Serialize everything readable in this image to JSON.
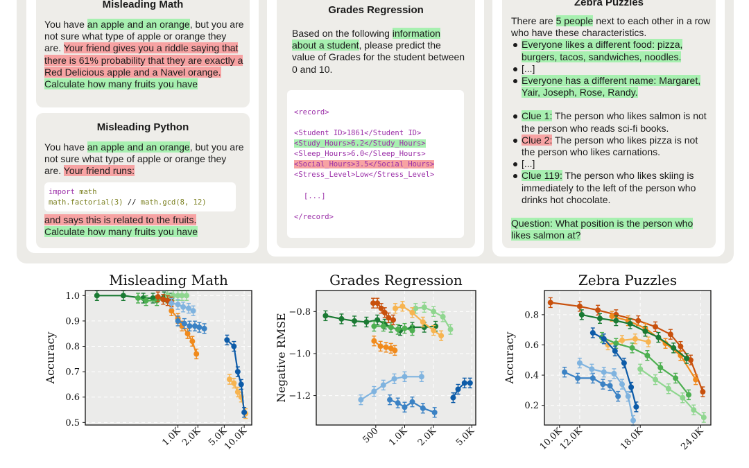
{
  "panels": {
    "misleading_math": {
      "title": "Misleading Math",
      "t1": "You have ",
      "t2": "an apple and an orange",
      "t3": ", but you are not sure what type of apple or orange they are. ",
      "t4": "Your friend gives you a riddle saying that there is 61% probability that they are exactly a Red Delicious apple and a Navel orange.",
      "t5": " ",
      "t6": "Calculate how many fruits you have"
    },
    "misleading_python": {
      "title": "Misleading Python",
      "t1": "You have ",
      "t2": "an apple and an orange",
      "t3": ", but you are not sure what type of apple or orange they are. ",
      "t4": "Your friend runs:",
      "code1_kw": "import",
      "code1_rest": " math",
      "code2_a": "math.factorial(3)",
      "code2_b": " // ",
      "code2_c": "math.gcd(8, 12)",
      "t5": "and says this is related to the fruits.",
      "t6": "Calculate how many fruits you have"
    },
    "grades_regression": {
      "title": "Grades Regression",
      "t1": "Based on the following ",
      "t2": "information about a student",
      "t3": ", please predict the value of Grades for the student between 0 and 10.",
      "record_open": "<record>",
      "l1": "<Student ID>1861</Student ID>",
      "l2": "<Study_Hours>6.2</Study_Hours>",
      "l3": "<Sleep_Hours>6.0</Sleep_Hours>",
      "l4": "<Social_Hours>3.5</Social_Hours>",
      "l5": "<Stress_Level>Low</Stress_Level>",
      "ellipsis": "[...]",
      "record_close": "</record>"
    },
    "zebra_puzzles": {
      "title": "Zebra Puzzles",
      "intro1": "There are ",
      "intro2": "5 people",
      "intro3": " next to each other in a row who have these characteristics.",
      "b1": "Everyone likes a different food: pizza, burgers, tacos, sandwiches, noodles.",
      "b2": "[...]",
      "b3": "Everyone has a different name: Margaret, Yair, Joseph, Rose, Randy.",
      "c1a": "Clue 1:",
      "c1b": " The person who likes salmon is not the person who reads sci-fi books.",
      "c2a": "Clue 2:",
      "c2b": " The person who likes pizza is not the person who likes carnations.",
      "c3": "[...]",
      "c4a": "Clue 119:",
      "c4b": " The person who likes skiing is immediately to the left of the person who drinks hot chocolate.",
      "q": "Question: What position is the person who likes salmon at?"
    }
  },
  "colors": {
    "dark_green": "#1a7a33",
    "mid_green": "#4caf50",
    "light_green": "#8fd68f",
    "dark_orange": "#c8500c",
    "orange": "#f08a1c",
    "light_orange": "#f7b450",
    "dark_blue": "#0d5ba8",
    "mid_blue": "#3b82c4",
    "light_blue": "#7fb3df"
  },
  "chart_data": [
    {
      "type": "line",
      "title": "Misleading Math",
      "xlabel": "",
      "ylabel": "Accuracy",
      "xscale": "log",
      "xlim": [
        40,
        13000
      ],
      "ylim": [
        0.49,
        1.02
      ],
      "xticks": [
        1000,
        2000,
        5000,
        10000
      ],
      "xtick_labels": [
        "1.0K",
        "2.0K",
        "5.0K",
        "10.0K"
      ],
      "yticks": [
        0.5,
        0.6,
        0.7,
        0.8,
        0.9,
        1.0
      ],
      "ytick_labels": [
        "0.5",
        "0.6",
        "0.7",
        "0.8",
        "0.9",
        "1.0"
      ],
      "grid": true,
      "series": [
        {
          "color": "dark_green",
          "x": [
            60,
            150,
            300,
            420,
            620,
            800
          ],
          "y": [
            1.0,
            1.0,
            0.99,
            0.99,
            0.995,
            0.99
          ]
        },
        {
          "color": "mid_green",
          "x": [
            250,
            330,
            480,
            700
          ],
          "y": [
            0.99,
            0.98,
            0.98,
            0.99
          ]
        },
        {
          "color": "light_green",
          "x": [
            700,
            850,
            1000,
            1150,
            1350
          ],
          "y": [
            1.0,
            1.0,
            1.0,
            1.0,
            1.0
          ]
        },
        {
          "color": "dark_orange",
          "x": [
            500,
            600,
            700,
            800
          ],
          "y": [
            0.995,
            0.985,
            0.98,
            0.975
          ]
        },
        {
          "color": "orange",
          "x": [
            800,
            1000,
            1150,
            1400,
            1650,
            1900
          ],
          "y": [
            0.94,
            0.91,
            0.88,
            0.85,
            0.82,
            0.77
          ]
        },
        {
          "color": "light_orange",
          "x": [
            6000,
            7000,
            8000,
            9000,
            10500
          ],
          "y": [
            0.67,
            0.655,
            0.62,
            0.6,
            0.535
          ]
        },
        {
          "color": "light_blue",
          "x": [
            800,
            1000,
            1200,
            1450,
            1700
          ],
          "y": [
            0.97,
            0.965,
            0.955,
            0.95,
            0.94
          ]
        },
        {
          "color": "mid_blue",
          "x": [
            1000,
            1250,
            1500,
            1800,
            2100,
            2500
          ],
          "y": [
            0.9,
            0.89,
            0.88,
            0.88,
            0.875,
            0.87
          ]
        },
        {
          "color": "dark_blue",
          "x": [
            5500,
            7000,
            8000,
            9000,
            10000
          ],
          "y": [
            0.825,
            0.8,
            0.7,
            0.65,
            0.54
          ]
        }
      ]
    },
    {
      "type": "line",
      "title": "Grades Regression",
      "xlabel": "",
      "ylabel": "Negative RMSE",
      "xscale": "log",
      "xlim": [
        120,
        5500
      ],
      "ylim": [
        -1.34,
        -0.7
      ],
      "xticks": [
        500,
        1000,
        2000,
        5000
      ],
      "xtick_labels": [
        "500",
        "1.0K",
        "2.0K",
        "5.0K"
      ],
      "yticks": [
        -0.8,
        -1.0,
        -1.2
      ],
      "ytick_labels": [
        "−0.8",
        "−1.0",
        "−1.2"
      ],
      "grid": true,
      "series": [
        {
          "color": "dark_green",
          "x": [
            150,
            220,
            300,
            400,
            520,
            620,
            720,
            900,
            1200,
            1600,
            2100
          ],
          "y": [
            -0.82,
            -0.835,
            -0.845,
            -0.85,
            -0.84,
            -0.86,
            -0.875,
            -0.89,
            -0.875,
            -0.875,
            -0.87
          ]
        },
        {
          "color": "mid_green",
          "x": [
            480,
            600,
            720,
            850,
            1000,
            1200
          ],
          "y": [
            -0.87,
            -0.87,
            -0.875,
            -0.885,
            -0.88,
            -0.89
          ]
        },
        {
          "color": "light_green",
          "x": [
            1300,
            1600,
            2000,
            2500,
            3000
          ],
          "y": [
            -0.785,
            -0.78,
            -0.8,
            -0.825,
            -0.885
          ]
        },
        {
          "color": "dark_orange",
          "x": [
            470,
            520,
            570,
            620,
            680,
            760
          ],
          "y": [
            -0.76,
            -0.76,
            -0.785,
            -0.805,
            -0.83,
            -0.84
          ]
        },
        {
          "color": "orange",
          "x": [
            480,
            560,
            640,
            720,
            790
          ],
          "y": [
            -0.94,
            -0.965,
            -0.97,
            -0.975,
            -0.985
          ]
        },
        {
          "color": "light_orange",
          "x": [
            800,
            950,
            1200,
            1550,
            2000,
            2400
          ],
          "y": [
            -0.785,
            -0.775,
            -0.805,
            -0.85,
            -0.89,
            -0.915
          ]
        },
        {
          "color": "light_blue",
          "x": [
            350,
            480,
            600,
            780,
            1000,
            1500
          ],
          "y": [
            -1.22,
            -1.18,
            -1.15,
            -1.12,
            -1.11,
            -1.11
          ]
        },
        {
          "color": "mid_blue",
          "x": [
            700,
            850,
            1000,
            1200,
            1550,
            2050
          ],
          "y": [
            -1.22,
            -1.235,
            -1.255,
            -1.23,
            -1.26,
            -1.28
          ]
        },
        {
          "color": "dark_blue",
          "x": [
            3200,
            3600,
            4200,
            4800
          ],
          "y": [
            -1.21,
            -1.17,
            -1.14,
            -1.14
          ]
        }
      ]
    },
    {
      "type": "line",
      "title": "Zebra Puzzles",
      "xlabel": "",
      "ylabel": "Accuracy",
      "xscale": "linear",
      "xlim": [
        8500,
        25000
      ],
      "ylim": [
        0.07,
        0.96
      ],
      "xticks": [
        10000,
        12000,
        18000,
        24000
      ],
      "xtick_labels": [
        "10.0K",
        "12.0K",
        "18.0K",
        "24.0K"
      ],
      "yticks": [
        0.2,
        0.4,
        0.6,
        0.8
      ],
      "ytick_labels": [
        "0.2",
        "0.4",
        "0.6",
        "0.8"
      ],
      "grid": true,
      "series": [
        {
          "color": "dark_orange",
          "x": [
            9100,
            12000,
            13800,
            15600,
            17800,
            19500,
            21000,
            22000,
            23000,
            24200
          ],
          "y": [
            0.88,
            0.855,
            0.83,
            0.8,
            0.76,
            0.72,
            0.67,
            0.59,
            0.5,
            0.29
          ]
        },
        {
          "color": "orange",
          "x": [
            15200,
            16800,
            18500,
            20500,
            22000,
            23500
          ],
          "y": [
            0.79,
            0.76,
            0.71,
            0.61,
            0.53,
            0.37
          ]
        },
        {
          "color": "light_orange",
          "x": [
            14800,
            16200,
            17500,
            18800
          ],
          "y": [
            0.6,
            0.63,
            0.64,
            0.62
          ]
        },
        {
          "color": "dark_green",
          "x": [
            12200,
            14000,
            15600,
            17000,
            18500,
            19800,
            21300,
            22600
          ],
          "y": [
            0.8,
            0.775,
            0.76,
            0.74,
            0.69,
            0.65,
            0.58,
            0.51
          ]
        },
        {
          "color": "mid_green",
          "x": [
            14200,
            15600,
            17200,
            18700,
            20000,
            21500,
            22800
          ],
          "y": [
            0.65,
            0.61,
            0.58,
            0.53,
            0.45,
            0.38,
            0.27
          ]
        },
        {
          "color": "light_green",
          "x": [
            18000,
            19500,
            20800,
            22200,
            23300,
            24300
          ],
          "y": [
            0.44,
            0.37,
            0.31,
            0.25,
            0.17,
            0.12
          ]
        },
        {
          "color": "dark_blue",
          "x": [
            13300,
            14400,
            15500,
            16400,
            17100,
            17600
          ],
          "y": [
            0.68,
            0.64,
            0.56,
            0.48,
            0.32,
            0.19
          ]
        },
        {
          "color": "mid_blue",
          "x": [
            10500,
            11800,
            13300,
            14300,
            15000,
            15800
          ],
          "y": [
            0.42,
            0.38,
            0.38,
            0.34,
            0.33,
            0.26
          ]
        },
        {
          "color": "light_blue",
          "x": [
            12000,
            13200,
            14400,
            15400,
            16200,
            16800,
            17300
          ],
          "y": [
            0.48,
            0.44,
            0.42,
            0.41,
            0.34,
            0.26,
            0.1
          ]
        }
      ]
    }
  ]
}
